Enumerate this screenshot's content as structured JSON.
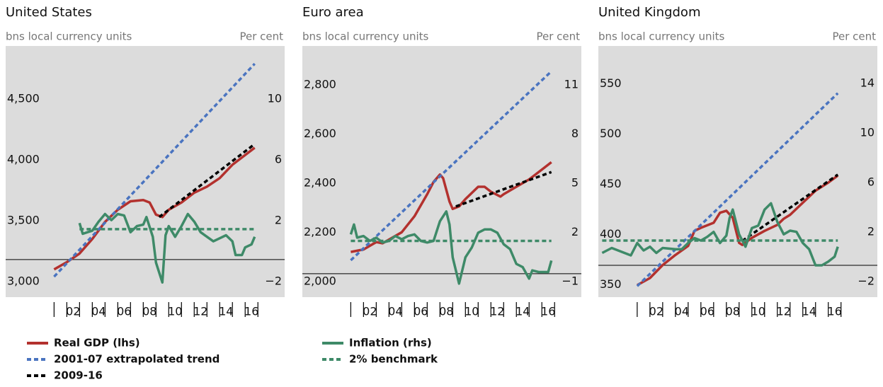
{
  "chart_data": [
    {
      "type": "line",
      "title": "United States",
      "ylabel": "bns local currency units",
      "y2label": "Per cent",
      "xlim": [
        1997.2,
        2019.1
      ],
      "xticks": [
        {
          "value": 2002,
          "label": "02"
        },
        {
          "value": 2004,
          "label": "04"
        },
        {
          "value": 2006,
          "label": "06"
        },
        {
          "value": 2008,
          "label": "08"
        },
        {
          "value": 2010,
          "label": "10"
        },
        {
          "value": 2012,
          "label": "12"
        },
        {
          "value": 2014,
          "label": "14"
        },
        {
          "value": 2016,
          "label": "16"
        }
      ],
      "xminorticks": [
        2001,
        2002,
        2003,
        2004,
        2005,
        2006,
        2007,
        2008,
        2009,
        2010,
        2011,
        2012,
        2013,
        2014,
        2015,
        2016,
        2017
      ],
      "ylim": [
        2942,
        5006
      ],
      "yticks": [
        {
          "value": 3000,
          "label": "3,000"
        },
        {
          "value": 3500,
          "label": "3,500"
        },
        {
          "value": 4000,
          "label": "4,000"
        },
        {
          "value": 4500,
          "label": "4,500"
        }
      ],
      "y2lim": [
        -2.47,
        14.05
      ],
      "y2ticks": [
        {
          "value": -2,
          "label": "−2"
        },
        2,
        6,
        10
      ],
      "y2_refline": 0,
      "series": [
        {
          "name": "Real GDP (lhs)",
          "color": "#b3312e",
          "style": "solid",
          "x": [
            2001,
            2002,
            2003,
            2004,
            2005,
            2006,
            2007,
            2008,
            2008.5,
            2009,
            2009.5,
            2010,
            2011,
            2012,
            2013,
            2014,
            2015,
            2016,
            2016.75
          ],
          "values": [
            3170,
            3230,
            3300,
            3420,
            3560,
            3660,
            3730,
            3740,
            3720,
            3620,
            3600,
            3660,
            3720,
            3800,
            3850,
            3920,
            4030,
            4110,
            4170
          ]
        },
        {
          "name": "2001-07 extrapolated trend",
          "color": "#4a74c0",
          "style": "dashed",
          "x": [
            2001,
            2016.75
          ],
          "values": [
            3110,
            4860
          ]
        },
        {
          "name": "2009-16",
          "color": "#000000",
          "style": "dashed",
          "x": [
            2009.25,
            2016.75
          ],
          "values": [
            3600,
            4200
          ]
        },
        {
          "name": "Inflation (rhs)",
          "color": "#3e8a68",
          "style": "solid",
          "axis": "y2",
          "x": [
            2003,
            2003.25,
            2004,
            2004.5,
            2005,
            2005.5,
            2006,
            2006.5,
            2007,
            2007.5,
            2008,
            2008.25,
            2008.75,
            2009,
            2009.5,
            2009.75,
            2010,
            2010.5,
            2011,
            2011.5,
            2012,
            2012.5,
            2013,
            2013.5,
            2014,
            2014.5,
            2015,
            2015.25,
            2015.75,
            2016,
            2016.5,
            2016.75
          ],
          "values": [
            2.4,
            1.7,
            1.9,
            2.5,
            3.0,
            2.6,
            3.0,
            2.9,
            1.8,
            2.2,
            2.3,
            2.8,
            1.5,
            -0.2,
            -1.5,
            1.6,
            2.2,
            1.5,
            2.2,
            3.0,
            2.5,
            1.8,
            1.5,
            1.2,
            1.4,
            1.6,
            1.2,
            0.3,
            0.3,
            0.8,
            1.0,
            1.5
          ]
        },
        {
          "name": "2% benchmark",
          "color": "#3e8a68",
          "style": "dashed",
          "axis": "y2",
          "x": [
            2003,
            2016.75
          ],
          "values": [
            2,
            2
          ]
        }
      ]
    },
    {
      "type": "line",
      "title": "Euro area",
      "ylabel": "bns local currency units",
      "y2label": "Per cent",
      "xlim": [
        1997.2,
        2019.1
      ],
      "xticks": [
        {
          "value": 2002,
          "label": "02"
        },
        {
          "value": 2004,
          "label": "04"
        },
        {
          "value": 2006,
          "label": "06"
        },
        {
          "value": 2008,
          "label": "08"
        },
        {
          "value": 2010,
          "label": "10"
        },
        {
          "value": 2012,
          "label": "12"
        },
        {
          "value": 2014,
          "label": "14"
        },
        {
          "value": 2016,
          "label": "16"
        }
      ],
      "xminorticks": [
        2001,
        2002,
        2003,
        2004,
        2005,
        2006,
        2007,
        2008,
        2009,
        2010,
        2011,
        2012,
        2013,
        2014,
        2015,
        2016,
        2017
      ],
      "ylim": [
        1971,
        2993
      ],
      "yticks": [
        {
          "value": 2000,
          "label": "2,000"
        },
        {
          "value": 2200,
          "label": "2,200"
        },
        {
          "value": 2400,
          "label": "2,400"
        },
        {
          "value": 2600,
          "label": "2,600"
        },
        {
          "value": 2800,
          "label": "2,800"
        }
      ],
      "y2lim": [
        -1.43,
        13.89
      ],
      "y2ticks": [
        {
          "value": -1,
          "label": "−1"
        },
        2,
        5,
        8,
        11
      ],
      "y2_refline": 0,
      "series": [
        {
          "color": "#b3312e",
          "style": "solid",
          "x": [
            2001,
            2002,
            2003,
            2003.5,
            2004,
            2005,
            2006,
            2007,
            2007.5,
            2008,
            2008.25,
            2008.75,
            2009,
            2009.5,
            2010,
            2011,
            2011.5,
            2012,
            2012.75,
            2013,
            2014,
            2015,
            2016,
            2016.75
          ],
          "values": [
            2155,
            2165,
            2195,
            2190,
            2205,
            2235,
            2300,
            2390,
            2440,
            2470,
            2455,
            2360,
            2330,
            2340,
            2370,
            2420,
            2420,
            2400,
            2380,
            2390,
            2420,
            2450,
            2490,
            2520
          ]
        },
        {
          "color": "#4a74c0",
          "style": "dashed",
          "x": [
            2001,
            2016.75
          ],
          "values": [
            2121,
            2890
          ]
        },
        {
          "color": "#000000",
          "style": "dashed",
          "x": [
            2009.25,
            2016.75
          ],
          "values": [
            2340,
            2480
          ]
        },
        {
          "color": "#3e8a68",
          "style": "solid",
          "axis": "y2",
          "x": [
            2001,
            2001.25,
            2001.5,
            2002,
            2002.5,
            2003,
            2003.5,
            2004,
            2004.5,
            2005,
            2005.5,
            2006,
            2006.5,
            2007,
            2007.5,
            2008,
            2008.5,
            2008.75,
            2009,
            2009.5,
            2010,
            2010.5,
            2011,
            2011.5,
            2012,
            2012.5,
            2013,
            2013.5,
            2014,
            2014.5,
            2015,
            2015.25,
            2015.75,
            2016,
            2016.5,
            2016.75
          ],
          "values": [
            2.4,
            3.0,
            2.2,
            2.3,
            2.0,
            2.2,
            1.9,
            2.0,
            2.3,
            2.1,
            2.3,
            2.4,
            2.0,
            1.9,
            2.0,
            3.2,
            3.8,
            3.0,
            1.0,
            -0.6,
            1.0,
            1.6,
            2.5,
            2.7,
            2.7,
            2.5,
            1.8,
            1.5,
            0.6,
            0.4,
            -0.3,
            0.2,
            0.1,
            0.1,
            0.1,
            0.8
          ]
        },
        {
          "color": "#3e8a68",
          "style": "dashed",
          "axis": "y2",
          "x": [
            2001,
            2016.75
          ],
          "values": [
            2,
            2
          ]
        }
      ]
    },
    {
      "type": "line",
      "title": "United Kingdom",
      "ylabel": "bns local currency units",
      "y2label": "Per cent",
      "xlim": [
        1997.95,
        2019.85
      ],
      "xticks": [
        {
          "value": 2002,
          "label": "02"
        },
        {
          "value": 2004,
          "label": "04"
        },
        {
          "value": 2006,
          "label": "06"
        },
        {
          "value": 2008,
          "label": "08"
        },
        {
          "value": 2010,
          "label": "10"
        },
        {
          "value": 2012,
          "label": "12"
        },
        {
          "value": 2014,
          "label": "14"
        },
        {
          "value": 2016,
          "label": "16"
        }
      ],
      "xminorticks": [
        2001,
        2002,
        2003,
        2004,
        2005,
        2006,
        2007,
        2008,
        2009,
        2010,
        2011,
        2012,
        2013,
        2014,
        2015,
        2016,
        2017
      ],
      "ylim": [
        346,
        596
      ],
      "yticks": [
        350,
        400,
        450,
        500,
        550
      ],
      "y2lim": [
        -2.57,
        17.7
      ],
      "y2ticks": [
        {
          "value": -2,
          "label": "−2"
        },
        2,
        6,
        10,
        14
      ],
      "y2_refline": 0,
      "series": [
        {
          "color": "#b3312e",
          "style": "solid",
          "x": [
            2001,
            2002,
            2003,
            2004,
            2005,
            2005.5,
            2006,
            2007,
            2007.5,
            2008,
            2008.5,
            2009,
            2009.25,
            2010,
            2011,
            2012,
            2012.5,
            2013,
            2014,
            2015,
            2016,
            2016.75
          ],
          "values": [
            358,
            365,
            378,
            388,
            397,
            412,
            415,
            420,
            430,
            432,
            425,
            400,
            398,
            405,
            412,
            418,
            424,
            428,
            440,
            452,
            460,
            467
          ]
        },
        {
          "color": "#4a74c0",
          "style": "dashed",
          "x": [
            2001,
            2016.75
          ],
          "values": [
            357,
            549
          ]
        },
        {
          "color": "#000000",
          "style": "dashed",
          "x": [
            2009.25,
            2016.75
          ],
          "values": [
            402,
            468
          ]
        },
        {
          "color": "#3e8a68",
          "style": "solid",
          "axis": "y2",
          "x": [
            1998.25,
            1999,
            2000,
            2000.5,
            2001,
            2001.5,
            2002,
            2002.5,
            2003,
            2004,
            2004.5,
            2005,
            2005.5,
            2006,
            2006.5,
            2007,
            2007.5,
            2008,
            2008.25,
            2008.5,
            2009,
            2009.5,
            2010,
            2010.5,
            2011,
            2011.5,
            2012,
            2012.5,
            2013,
            2013.5,
            2014,
            2014.5,
            2015,
            2015.5,
            2016,
            2016.5,
            2016.75
          ],
          "values": [
            1.0,
            1.4,
            1.0,
            0.8,
            1.8,
            1.2,
            1.5,
            1.0,
            1.4,
            1.3,
            1.3,
            1.8,
            2.2,
            2.0,
            2.3,
            2.7,
            1.8,
            2.4,
            3.8,
            4.5,
            2.5,
            1.5,
            3.0,
            3.2,
            4.5,
            5.0,
            3.5,
            2.5,
            2.8,
            2.7,
            1.8,
            1.3,
            0.0,
            0.0,
            0.3,
            0.7,
            1.5
          ]
        },
        {
          "color": "#3e8a68",
          "style": "dashed",
          "axis": "y2",
          "x": [
            1998.25,
            2016.75
          ],
          "values": [
            2,
            2
          ]
        }
      ]
    }
  ]
}
